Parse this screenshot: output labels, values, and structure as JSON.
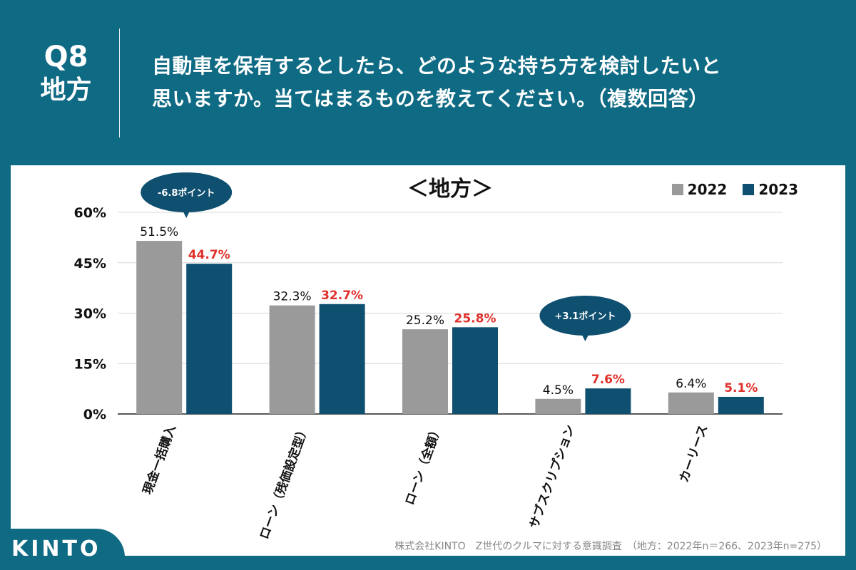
{
  "header": {
    "qnum": "Q8",
    "region": "地方",
    "question_line1": "自動車を保有するとしたら、どのような持ち方を検討したいと",
    "question_line2": "思いますか。当てはまるものを教えてください。（複数回答）"
  },
  "colors": {
    "s2022": "#9a9a9a",
    "s2023": "#0f4f70",
    "highlight": "#e0302a",
    "bubble": "#0f4f70"
  },
  "chart_data": {
    "type": "bar",
    "title": "＜地方＞",
    "categories": [
      "現金一括購入",
      "ローン（残価設定型）",
      "ローン（全額）",
      "サブスクリプション",
      "カーリース"
    ],
    "series": [
      {
        "name": "2022",
        "values": [
          51.5,
          32.3,
          25.2,
          4.5,
          6.4
        ],
        "labels": [
          "51.5%",
          "32.3%",
          "25.2%",
          "4.5%",
          "6.4%"
        ]
      },
      {
        "name": "2023",
        "values": [
          44.7,
          32.7,
          25.8,
          7.6,
          5.1
        ],
        "labels": [
          "44.7%",
          "32.7%",
          "25.8%",
          "7.6%",
          "5.1%"
        ]
      }
    ],
    "yticks": [
      "0%",
      "15%",
      "30%",
      "45%",
      "60%"
    ],
    "ylim": [
      0,
      60
    ],
    "annotations": [
      {
        "text": "-6.8ポイント",
        "category_index": 0
      },
      {
        "text": "+3.1ポイント",
        "category_index": 3
      }
    ],
    "legend_position": "top-right"
  },
  "footer": {
    "note": "株式会社KINTO　Z世代のクルマに対する意識調査　（地方：2022年n＝266、2023年n=275）",
    "logo": "KINTO"
  }
}
